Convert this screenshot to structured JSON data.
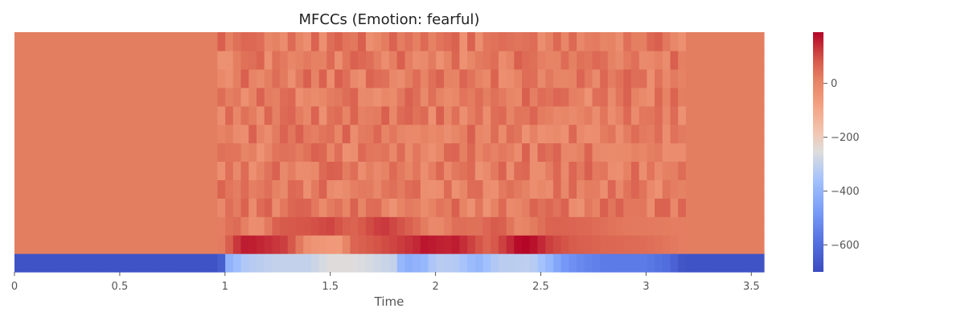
{
  "chart_data": {
    "type": "heatmap",
    "title": "MFCCs (Emotion: fearful)",
    "xlabel": "Time",
    "ylabel": "",
    "x_range": [
      0,
      3.56
    ],
    "x_ticks": [
      0,
      0.5,
      1,
      1.5,
      2,
      2.5,
      3,
      3.5
    ],
    "x_tick_labels": [
      "0",
      "0.5",
      "1",
      "1.5",
      "2",
      "2.5",
      "3",
      "3.5"
    ],
    "coefficient_rows": 13,
    "colormap": "coolwarm",
    "color_range": [
      -700,
      190
    ],
    "colorbar_ticks": [
      0,
      -200,
      -400,
      -600
    ],
    "colorbar_tick_labels": [
      "0",
      "−200",
      "−400",
      "−600"
    ],
    "silence_value_upper_rows": 20,
    "silence_value_row0": -680,
    "speech_interval_seconds": [
      0.98,
      3.18
    ],
    "row0_profile": [
      [
        0.0,
        -680
      ],
      [
        0.98,
        -680
      ],
      [
        1.0,
        -430
      ],
      [
        1.1,
        -330
      ],
      [
        1.25,
        -300
      ],
      [
        1.4,
        -300
      ],
      [
        1.5,
        -250
      ],
      [
        1.6,
        -250
      ],
      [
        1.8,
        -300
      ],
      [
        1.85,
        -430
      ],
      [
        1.95,
        -390
      ],
      [
        2.0,
        -320
      ],
      [
        2.1,
        -330
      ],
      [
        2.2,
        -400
      ],
      [
        2.3,
        -320
      ],
      [
        2.45,
        -310
      ],
      [
        2.55,
        -400
      ],
      [
        2.6,
        -480
      ],
      [
        2.7,
        -530
      ],
      [
        2.8,
        -560
      ],
      [
        3.0,
        -560
      ],
      [
        3.1,
        -600
      ],
      [
        3.18,
        -680
      ],
      [
        3.56,
        -680
      ]
    ],
    "row1_profile": [
      [
        0.0,
        20
      ],
      [
        0.98,
        20
      ],
      [
        1.05,
        120
      ],
      [
        1.1,
        165
      ],
      [
        1.2,
        140
      ],
      [
        1.3,
        110
      ],
      [
        1.4,
        -40
      ],
      [
        1.55,
        -60
      ],
      [
        1.6,
        60
      ],
      [
        1.8,
        110
      ],
      [
        1.9,
        140
      ],
      [
        1.95,
        170
      ],
      [
        2.05,
        150
      ],
      [
        2.1,
        160
      ],
      [
        2.25,
        60
      ],
      [
        2.35,
        140
      ],
      [
        2.4,
        190
      ],
      [
        2.45,
        185
      ],
      [
        2.55,
        110
      ],
      [
        2.65,
        80
      ],
      [
        2.8,
        60
      ],
      [
        3.0,
        50
      ],
      [
        3.18,
        20
      ],
      [
        3.56,
        20
      ]
    ],
    "row2_profile": [
      [
        0.0,
        20
      ],
      [
        0.98,
        20
      ],
      [
        1.05,
        60
      ],
      [
        1.15,
        -40
      ],
      [
        1.25,
        80
      ],
      [
        1.4,
        90
      ],
      [
        1.5,
        110
      ],
      [
        1.6,
        60
      ],
      [
        1.75,
        130
      ],
      [
        1.9,
        60
      ],
      [
        2.0,
        -20
      ],
      [
        2.1,
        50
      ],
      [
        2.2,
        40
      ],
      [
        2.3,
        90
      ],
      [
        2.4,
        -10
      ],
      [
        2.55,
        70
      ],
      [
        2.7,
        60
      ],
      [
        2.9,
        30
      ],
      [
        3.18,
        20
      ],
      [
        3.56,
        20
      ]
    ]
  }
}
